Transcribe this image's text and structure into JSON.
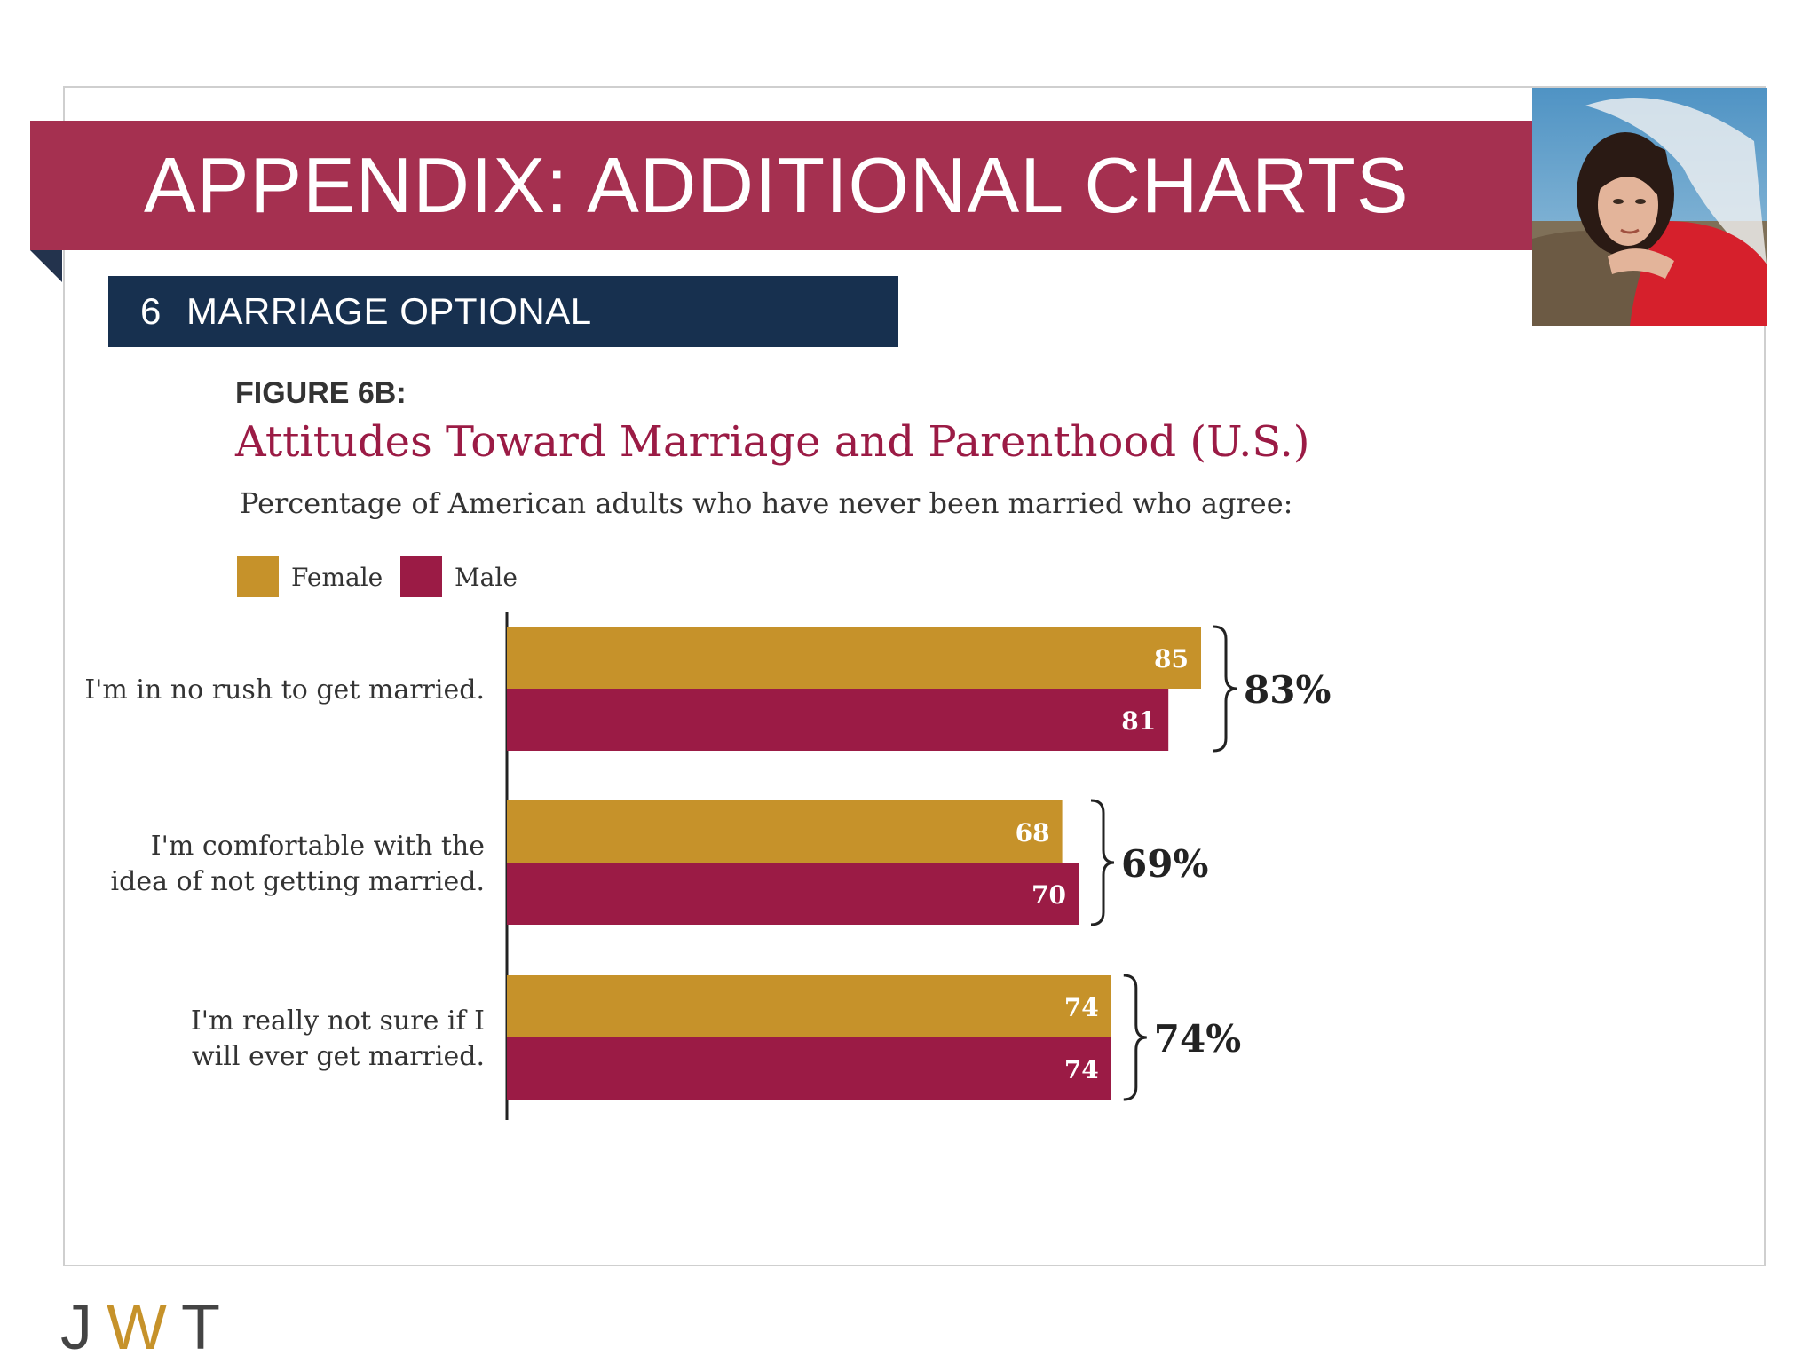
{
  "header": {
    "title": "APPENDIX: ADDITIONAL CHARTS"
  },
  "section": {
    "number": "6",
    "label": "MARRIAGE OPTIONAL"
  },
  "figure": {
    "label": "FIGURE 6B:"
  },
  "logo": {
    "j": "J",
    "w": "W",
    "t": "T"
  },
  "colors": {
    "banner": "#a53050",
    "section": "#17304f",
    "female": "#c6922a",
    "male": "#9b1b45"
  },
  "chart_data": {
    "type": "bar",
    "orientation": "horizontal",
    "title": "Attitudes Toward Marriage and Parenthood (U.S.)",
    "subtitle": "Percentage of American adults who have never been married who agree:",
    "categories": [
      "I'm in no rush to get married.",
      "I'm comfortable with the idea of not getting married.",
      "I'm really not sure if I will ever get married."
    ],
    "category_lines": [
      [
        "I'm in no rush to get married."
      ],
      [
        "I'm comfortable with the",
        "idea of not getting married."
      ],
      [
        "I'm really not sure if I",
        "will ever get married."
      ]
    ],
    "series": [
      {
        "name": "Female",
        "color": "#c6922a",
        "values": [
          85,
          68,
          74
        ]
      },
      {
        "name": "Male",
        "color": "#9b1b45",
        "values": [
          81,
          70,
          74
        ]
      }
    ],
    "totals": [
      "83%",
      "69%",
      "74%"
    ],
    "xlim": [
      0,
      100
    ],
    "legend_position": "top-left",
    "grid": false
  }
}
